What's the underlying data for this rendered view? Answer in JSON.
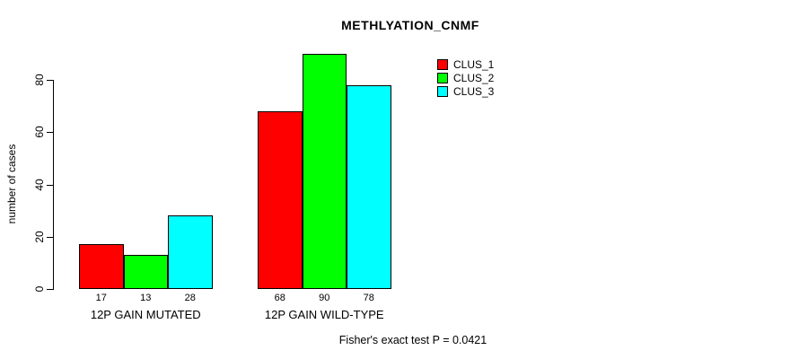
{
  "chart_data": {
    "type": "bar",
    "title": "METHLYATION_CNMF",
    "xlabel": "",
    "ylabel": "number of cases",
    "categories": [
      "12P GAIN MUTATED",
      "12P GAIN WILD-TYPE"
    ],
    "series": [
      {
        "name": "CLUS_1",
        "color": "#FF0000",
        "values": [
          17,
          68
        ]
      },
      {
        "name": "CLUS_2",
        "color": "#00FF00",
        "values": [
          13,
          90
        ]
      },
      {
        "name": "CLUS_3",
        "color": "#00FFFF",
        "values": [
          28,
          78
        ]
      }
    ],
    "yticks": [
      0,
      20,
      40,
      60,
      80
    ],
    "ylim": [
      0,
      90
    ],
    "bar_value_labels": true,
    "grid": false,
    "legend_position": "top-right",
    "annotation": "Fisher's exact test P = 0.0421"
  }
}
